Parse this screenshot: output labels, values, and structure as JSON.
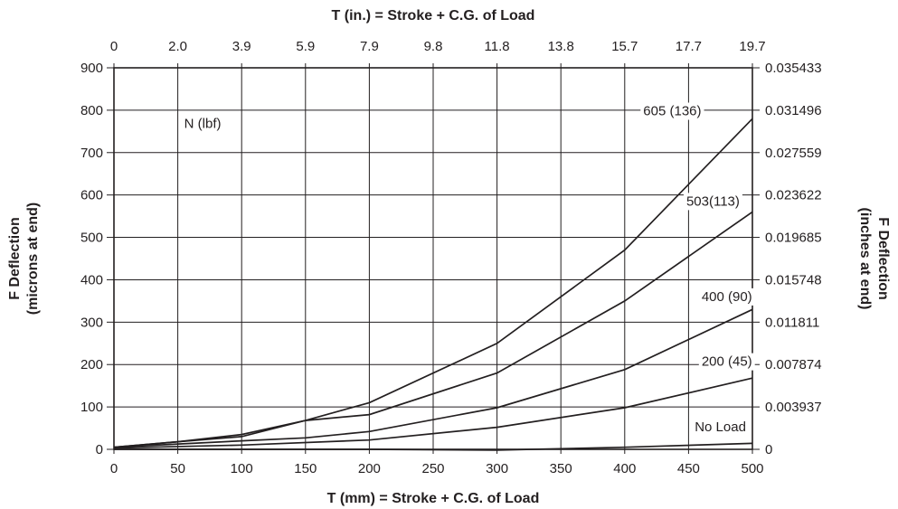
{
  "chart_data": {
    "type": "line",
    "title": "",
    "xlabel": "T (mm) = Stroke + C.G. of Load",
    "xlabel_top": "T (in.) = Stroke + C.G. of Load",
    "ylabel": [
      "F Deflection",
      "(microns at end)"
    ],
    "ylabel_right": [
      "F Deflection",
      "(inches at end)"
    ],
    "xlim": [
      0,
      500
    ],
    "ylim": [
      0,
      900
    ],
    "grid": true,
    "x_ticks": [
      "0",
      "50",
      "100",
      "150",
      "200",
      "250",
      "300",
      "350",
      "400",
      "450",
      "500"
    ],
    "x_ticks_top": [
      "0",
      "2.0",
      "3.9",
      "5.9",
      "7.9",
      "9.8",
      "11.8",
      "13.8",
      "15.7",
      "17.7",
      "19.7"
    ],
    "y_ticks": [
      "0",
      "100",
      "200",
      "300",
      "400",
      "500",
      "600",
      "700",
      "800",
      "900"
    ],
    "y_ticks_right": [
      "0",
      "0.003937",
      "0.007874",
      "0.011811",
      "0.015748",
      "0.019685",
      "0.023622",
      "0.027559",
      "0.031496",
      "0.035433"
    ],
    "legend_title": "N (lbf)",
    "series": [
      {
        "name": "605 (136)",
        "x": [
          0,
          50,
          100,
          150,
          200,
          300,
          400,
          500
        ],
        "values": [
          5,
          18,
          35,
          68,
          110,
          250,
          470,
          780
        ]
      },
      {
        "name": "503(113)",
        "x": [
          0,
          50,
          100,
          150,
          200,
          300,
          400,
          500
        ],
        "values": [
          5,
          18,
          30,
          68,
          82,
          180,
          350,
          560
        ]
      },
      {
        "name": "400 (90)",
        "x": [
          0,
          100,
          150,
          200,
          300,
          400,
          500
        ],
        "values": [
          5,
          20,
          27,
          42,
          98,
          188,
          330
        ]
      },
      {
        "name": "200 (45)",
        "x": [
          0,
          100,
          200,
          300,
          400,
          500
        ],
        "values": [
          3,
          10,
          22,
          52,
          98,
          168
        ]
      },
      {
        "name": "No Load",
        "x": [
          0,
          100,
          200,
          300,
          400,
          500
        ],
        "values": [
          0,
          0,
          0,
          -2,
          5,
          14
        ]
      }
    ]
  }
}
